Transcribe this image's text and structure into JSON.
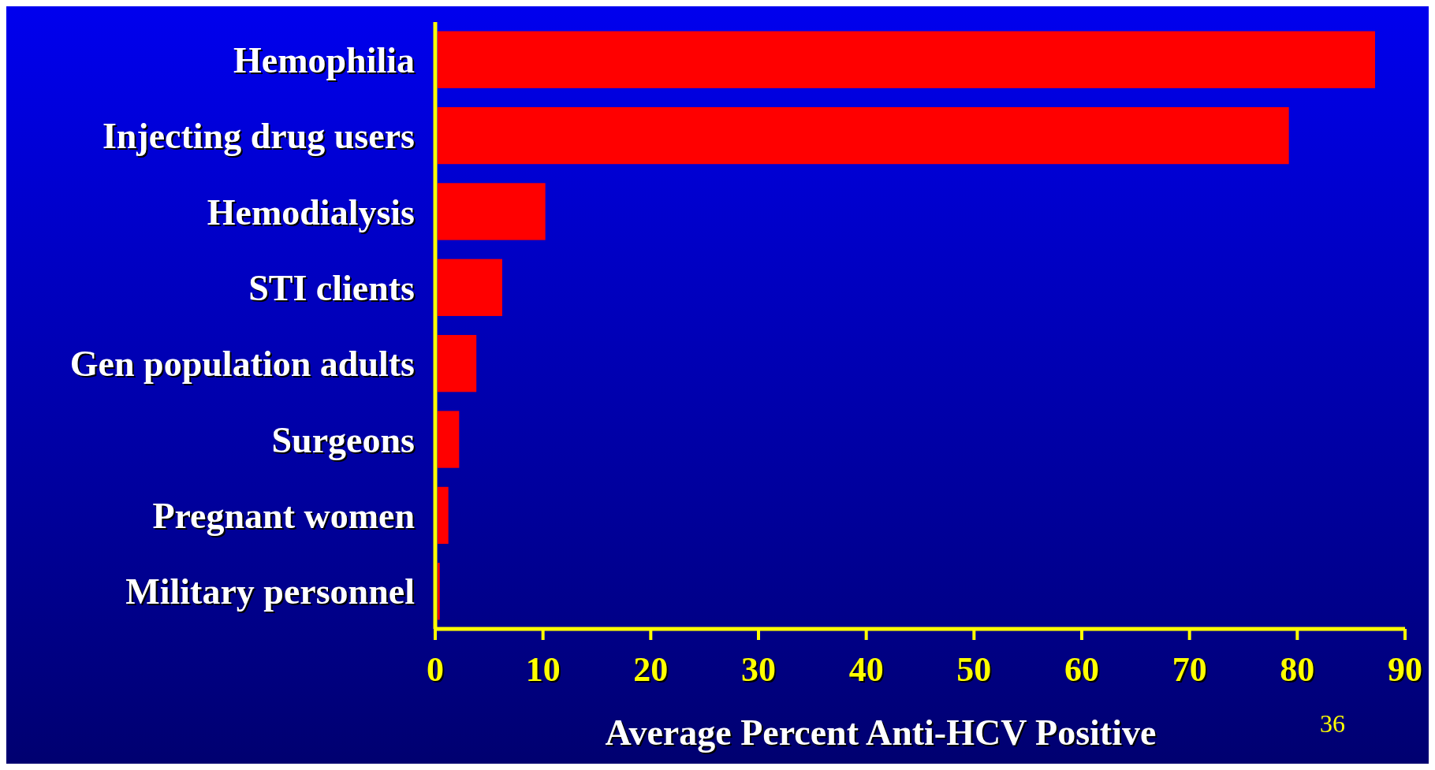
{
  "chart_data": {
    "type": "bar",
    "orientation": "horizontal",
    "categories": [
      "Hemophilia",
      "Injecting drug users",
      "Hemodialysis",
      "STI clients",
      "Gen population adults",
      "Surgeons",
      "Pregnant women",
      "Military personnel"
    ],
    "values": [
      87,
      79,
      10,
      6,
      3.6,
      2,
      1,
      0.2
    ],
    "color": "#ff0000",
    "xlim": [
      0,
      90
    ],
    "xticks": [
      0,
      10,
      20,
      30,
      40,
      50,
      60,
      70,
      80,
      90
    ],
    "xlabel": "Average Percent Anti-HCV Positive",
    "annotations": [
      "36"
    ]
  }
}
